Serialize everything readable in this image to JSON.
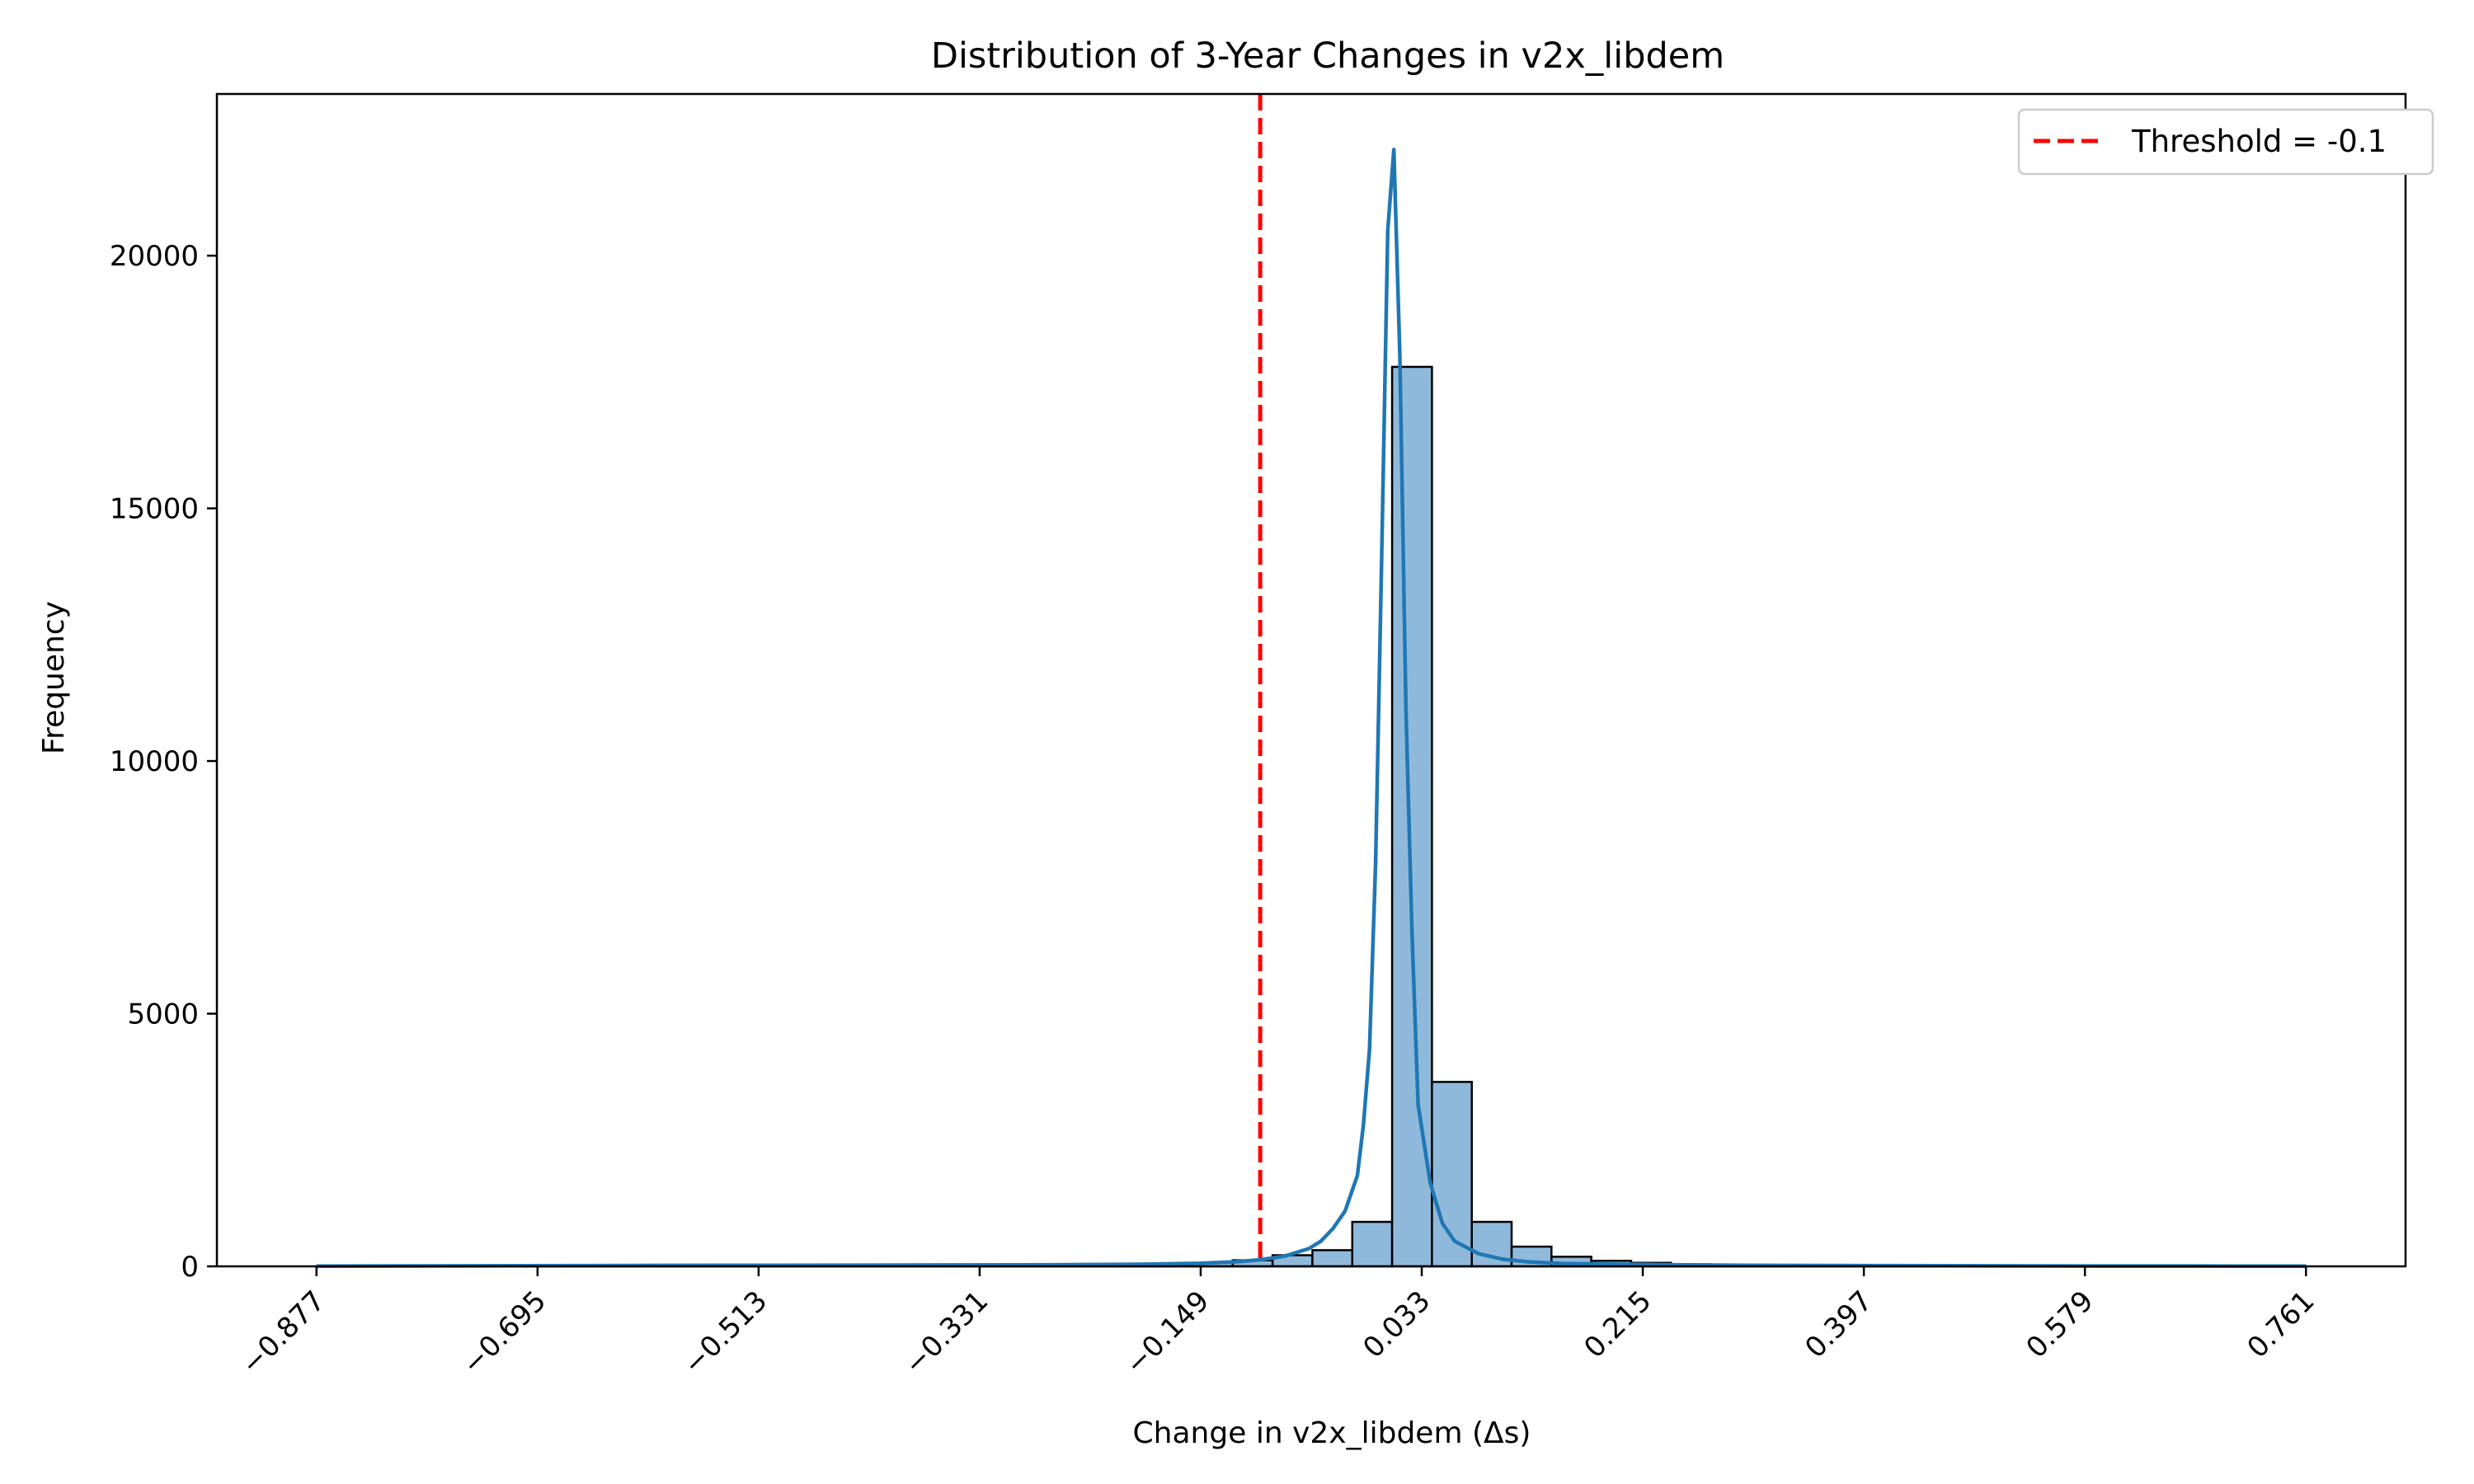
{
  "chart_data": {
    "type": "bar",
    "title": "Distribution of 3-Year Changes in v2x_libdem",
    "xlabel": "Change in v2x_libdem (Δs)",
    "ylabel": "Frequency",
    "xlim": [
      -0.959,
      0.843
    ],
    "ylim": [
      0,
      23200
    ],
    "x_ticks": [
      -0.877,
      -0.695,
      -0.513,
      -0.331,
      -0.149,
      0.033,
      0.215,
      0.397,
      0.579,
      0.761
    ],
    "x_tick_labels": [
      "−0.877",
      "−0.695",
      "−0.513",
      "−0.331",
      "−0.149",
      "0.033",
      "0.215",
      "0.397",
      "0.579",
      "0.761"
    ],
    "y_ticks": [
      0,
      5000,
      10000,
      15000,
      20000
    ],
    "y_tick_labels": [
      "0",
      "5000",
      "10000",
      "15000",
      "20000"
    ],
    "grid": false,
    "legend_position": "top-right",
    "bin_edges": [
      -0.877,
      -0.8442,
      -0.8114,
      -0.7786,
      -0.7458,
      -0.713,
      -0.6802,
      -0.6474,
      -0.6146,
      -0.5818,
      -0.549,
      -0.5162,
      -0.4834,
      -0.4506,
      -0.4178,
      -0.385,
      -0.3522,
      -0.3194,
      -0.2866,
      -0.2538,
      -0.221,
      -0.1882,
      -0.1554,
      -0.1226,
      -0.0898,
      -0.057,
      -0.0242,
      0.0086,
      0.0414,
      0.0742,
      0.107,
      0.1398,
      0.1726,
      0.2054,
      0.2382,
      0.271,
      0.3038,
      0.3366,
      0.3694,
      0.4022,
      0.435,
      0.4678,
      0.5006,
      0.5334,
      0.5662,
      0.599,
      0.6318,
      0.6646,
      0.6974,
      0.7302,
      0.761
    ],
    "counts": [
      2,
      3,
      3,
      4,
      5,
      6,
      8,
      9,
      9,
      8,
      8,
      9,
      10,
      11,
      12,
      12,
      13,
      15,
      18,
      22,
      28,
      40,
      70,
      120,
      220,
      320,
      880,
      17800,
      3650,
      880,
      390,
      190,
      110,
      70,
      40,
      28,
      22,
      18,
      14,
      11,
      9,
      7,
      6,
      5,
      4,
      4,
      3,
      3,
      2,
      2
    ],
    "kde": {
      "x": [
        -0.877,
        -0.8,
        -0.7,
        -0.6,
        -0.5,
        -0.4,
        -0.3,
        -0.2,
        -0.15,
        -0.12,
        -0.1,
        -0.08,
        -0.06,
        -0.05,
        -0.04,
        -0.03,
        -0.02,
        -0.015,
        -0.01,
        -0.005,
        0.0,
        0.005,
        0.01,
        0.015,
        0.02,
        0.025,
        0.03,
        0.04,
        0.05,
        0.06,
        0.08,
        0.1,
        0.12,
        0.15,
        0.2,
        0.25,
        0.3,
        0.4,
        0.5,
        0.6,
        0.7,
        0.761
      ],
      "y": [
        5,
        8,
        12,
        18,
        22,
        25,
        28,
        40,
        60,
        90,
        130,
        200,
        350,
        500,
        750,
        1100,
        1800,
        2800,
        4300,
        8000,
        14000,
        20500,
        22100,
        18000,
        11000,
        6600,
        3200,
        1650,
        850,
        500,
        250,
        140,
        90,
        55,
        40,
        30,
        22,
        15,
        10,
        7,
        5,
        4
      ]
    },
    "series": [
      {
        "name": "Threshold = -0.1",
        "type": "vline",
        "x": -0.1,
        "color": "#ff0000"
      }
    ],
    "colors": {
      "bar_fill": "#8fb9db",
      "bar_edge": "#000000",
      "kde_line": "#1f77b4",
      "threshold": "#ff0000"
    }
  }
}
